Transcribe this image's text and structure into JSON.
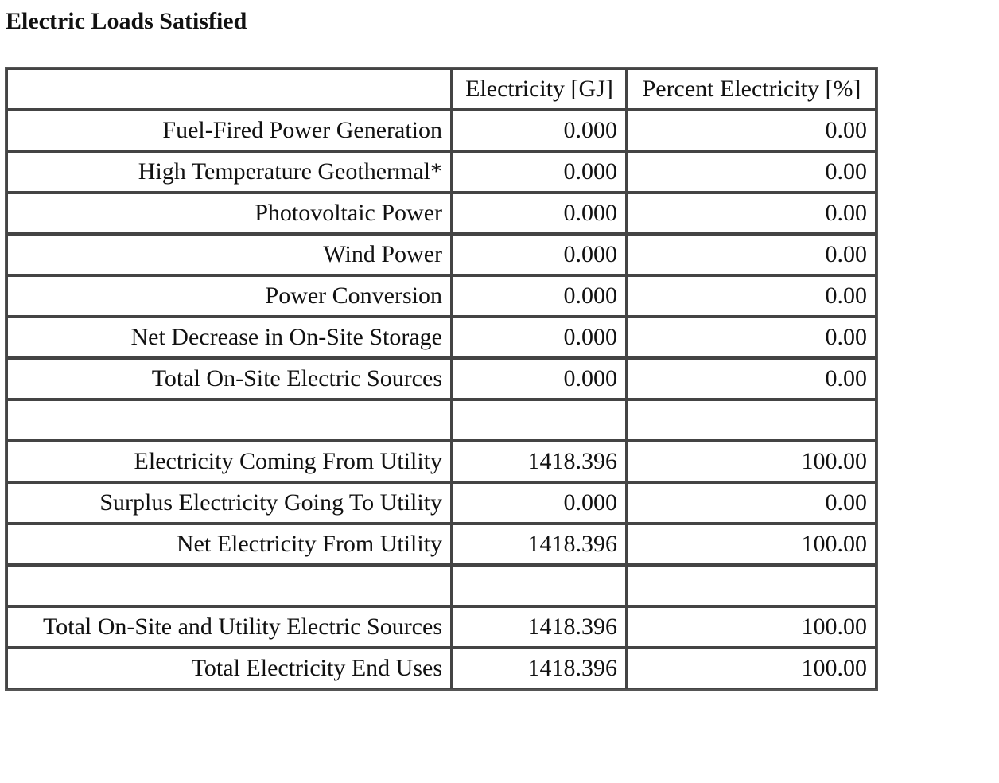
{
  "title": "Electric Loads Satisfied",
  "table": {
    "headers": [
      "",
      "Electricity [GJ]",
      "Percent Electricity [%]"
    ],
    "rows": [
      {
        "label": "Fuel-Fired Power Generation",
        "gj": "0.000",
        "pct": "0.00"
      },
      {
        "label": "High Temperature Geothermal*",
        "gj": "0.000",
        "pct": "0.00"
      },
      {
        "label": "Photovoltaic Power",
        "gj": "0.000",
        "pct": "0.00"
      },
      {
        "label": "Wind Power",
        "gj": "0.000",
        "pct": "0.00"
      },
      {
        "label": "Power Conversion",
        "gj": "0.000",
        "pct": "0.00"
      },
      {
        "label": "Net Decrease in On-Site Storage",
        "gj": "0.000",
        "pct": "0.00"
      },
      {
        "label": "Total On-Site Electric Sources",
        "gj": "0.000",
        "pct": "0.00"
      },
      {
        "label": "",
        "gj": "",
        "pct": ""
      },
      {
        "label": "Electricity Coming From Utility",
        "gj": "1418.396",
        "pct": "100.00"
      },
      {
        "label": "Surplus Electricity Going To Utility",
        "gj": "0.000",
        "pct": "0.00"
      },
      {
        "label": "Net Electricity From Utility",
        "gj": "1418.396",
        "pct": "100.00"
      },
      {
        "label": "",
        "gj": "",
        "pct": ""
      },
      {
        "label": "Total On-Site and Utility Electric Sources",
        "gj": "1418.396",
        "pct": "100.00"
      },
      {
        "label": "Total Electricity End Uses",
        "gj": "1418.396",
        "pct": "100.00"
      }
    ]
  }
}
